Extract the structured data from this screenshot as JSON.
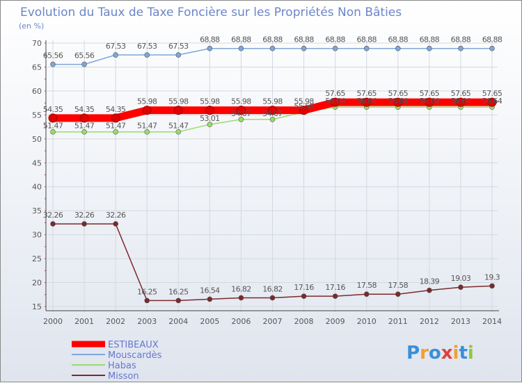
{
  "chart_data": {
    "type": "line",
    "title": "Evolution du Taux de Taxe Foncière sur les Propriétés Non Bâties",
    "ylabel": "(en %)",
    "xlabel": "",
    "categories": [
      "2000",
      "2001",
      "2002",
      "2003",
      "2004",
      "2005",
      "2006",
      "2007",
      "2008",
      "2009",
      "2010",
      "2011",
      "2012",
      "2013",
      "2014"
    ],
    "ylim": [
      15,
      70
    ],
    "yticks": [
      15,
      20,
      25,
      30,
      35,
      40,
      45,
      50,
      55,
      60,
      65,
      70
    ],
    "grid": true,
    "legend_position": "bottom-left",
    "series": [
      {
        "name": "ESTIBEAUX",
        "color": "#ff0000",
        "values": [
          54.35,
          54.35,
          54.35,
          55.98,
          55.98,
          55.98,
          55.98,
          55.98,
          55.98,
          57.65,
          57.65,
          57.65,
          57.65,
          57.65,
          57.65
        ],
        "labels": [
          "54.35",
          "54.35",
          "54.35",
          "55.98",
          "55.98",
          "55.98",
          "55.98",
          "55.98",
          "55.98",
          "57.65",
          "57.65",
          "57.65",
          "57.65",
          "57.65",
          "57.65"
        ]
      },
      {
        "name": "Mouscardès",
        "color": "#7ea7d8",
        "values": [
          65.56,
          65.56,
          67.53,
          67.53,
          67.53,
          68.88,
          68.88,
          68.88,
          68.88,
          68.88,
          68.88,
          68.88,
          68.88,
          68.88,
          68.88
        ],
        "labels": [
          "65.56",
          "65.56",
          "67.53",
          "67.53",
          "67.53",
          "68.88",
          "68.88",
          "68.88",
          "68.88",
          "68.88",
          "68.88",
          "68.88",
          "68.88",
          "68.88",
          "68.88"
        ]
      },
      {
        "name": "Habas",
        "color": "#99dd66",
        "values": [
          51.47,
          51.47,
          51.47,
          51.47,
          51.47,
          53.01,
          54.07,
          54.07,
          55.59,
          56.64,
          56.64,
          56.64,
          56.64,
          56.64,
          56.64
        ],
        "labels": [
          "51.47",
          "51.47",
          "51.47",
          "51.47",
          "51.47",
          "53.01",
          "54.07",
          "54.07",
          "55.59",
          "56.64",
          "56.64",
          "56.64",
          "56.64",
          "56.64",
          "56.64"
        ]
      },
      {
        "name": "Misson",
        "color": "#7a2a2a",
        "values": [
          32.26,
          32.26,
          32.26,
          16.25,
          16.25,
          16.54,
          16.82,
          16.82,
          17.16,
          17.16,
          17.58,
          17.58,
          18.39,
          19.03,
          19.3
        ],
        "labels": [
          "32.26",
          "32.26",
          "32.26",
          "16.25",
          "16.25",
          "16.54",
          "16.82",
          "16.82",
          "17.16",
          "17.16",
          "17.58",
          "17.58",
          "18.39",
          "19.03",
          "19.3"
        ]
      }
    ]
  },
  "branding": {
    "logo_letters": [
      "P",
      "r",
      "o",
      "x",
      "i",
      "t",
      "i"
    ],
    "logo_colors": [
      "#3a8fd8",
      "#f0a030",
      "#3a8fd8",
      "#e04040",
      "#f0a030",
      "#3a8fd8",
      "#8cc840"
    ]
  }
}
